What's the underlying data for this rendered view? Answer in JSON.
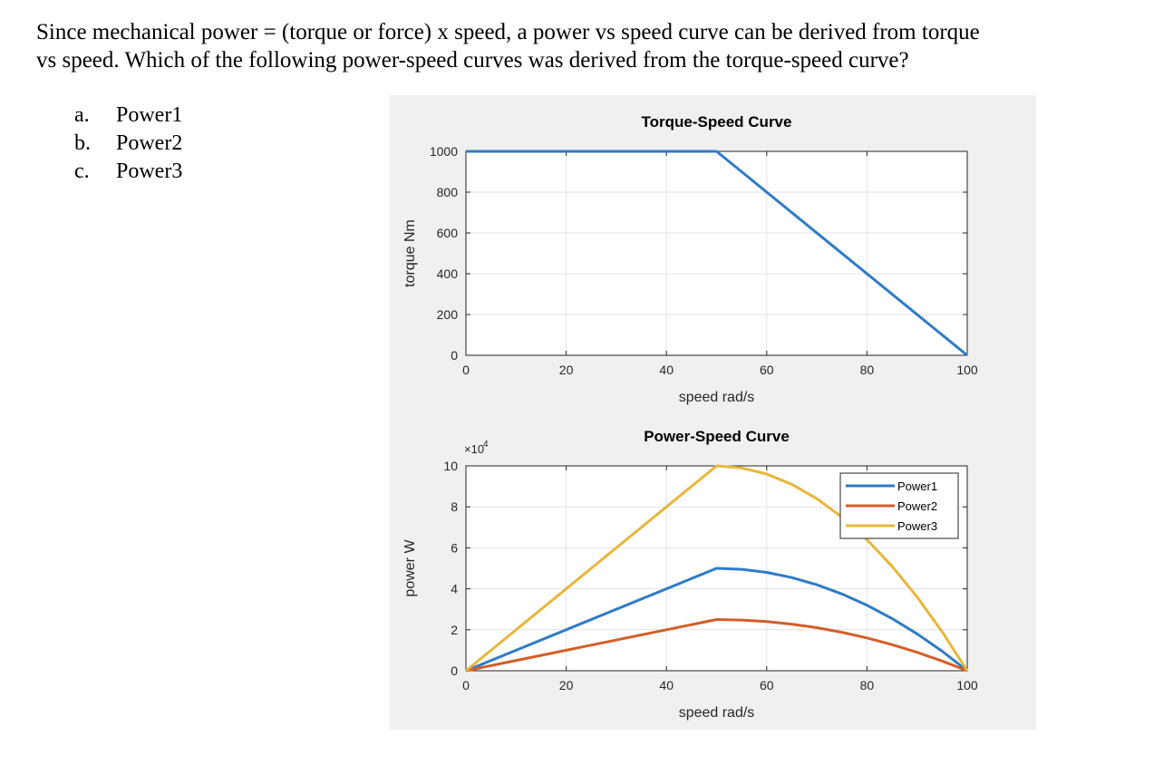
{
  "question": {
    "line1": "Since mechanical power = (torque or force) x speed, a power vs speed curve can be derived from torque",
    "line2": "vs speed.  Which of the following power-speed curves was derived from the torque-speed curve?"
  },
  "options": [
    {
      "letter": "a.",
      "text": "Power1"
    },
    {
      "letter": "b.",
      "text": "Power2"
    },
    {
      "letter": "c.",
      "text": "Power3"
    }
  ],
  "chart_data": [
    {
      "type": "line",
      "title": "Torque-Speed Curve",
      "xlabel": "speed rad/s",
      "ylabel": "torque Nm",
      "xlim": [
        0,
        100
      ],
      "ylim": [
        0,
        1000
      ],
      "xticks": [
        0,
        20,
        40,
        60,
        80,
        100
      ],
      "yticks": [
        0,
        200,
        400,
        600,
        800,
        1000
      ],
      "grid": true,
      "series": [
        {
          "x": [
            0,
            50,
            100
          ],
          "y": [
            1000,
            1000,
            0
          ],
          "color": "#2f7bc6"
        }
      ]
    },
    {
      "type": "line",
      "title": "Power-Speed Curve",
      "xlabel": "speed rad/s",
      "ylabel": "power W",
      "y_multiplier": "×10",
      "y_multiplier_exp": "4",
      "xlim": [
        0,
        100
      ],
      "ylim": [
        0,
        10
      ],
      "xticks": [
        0,
        20,
        40,
        60,
        80,
        100
      ],
      "yticks": [
        0,
        2,
        4,
        6,
        8,
        10
      ],
      "grid": true,
      "legend_position": "top-right",
      "series": [
        {
          "name": "Power1",
          "color": "#2f7bc6",
          "x": [
            0,
            50,
            55,
            60,
            65,
            70,
            75,
            80,
            85,
            90,
            95,
            100
          ],
          "y": [
            0,
            5.0,
            4.95,
            4.8,
            4.55,
            4.2,
            3.75,
            3.2,
            2.55,
            1.8,
            0.95,
            0
          ]
        },
        {
          "name": "Power2",
          "color": "#d35f28",
          "x": [
            0,
            50,
            55,
            60,
            65,
            70,
            75,
            80,
            85,
            90,
            95,
            100
          ],
          "y": [
            0,
            2.5,
            2.475,
            2.4,
            2.275,
            2.1,
            1.875,
            1.6,
            1.275,
            0.9,
            0.475,
            0
          ]
        },
        {
          "name": "Power3",
          "color": "#e8b63b",
          "x": [
            0,
            50,
            55,
            60,
            65,
            70,
            75,
            80,
            85,
            90,
            95,
            100
          ],
          "y": [
            0,
            10.0,
            9.9,
            9.6,
            9.1,
            8.4,
            7.5,
            6.4,
            5.1,
            3.6,
            1.9,
            0
          ]
        }
      ]
    }
  ]
}
